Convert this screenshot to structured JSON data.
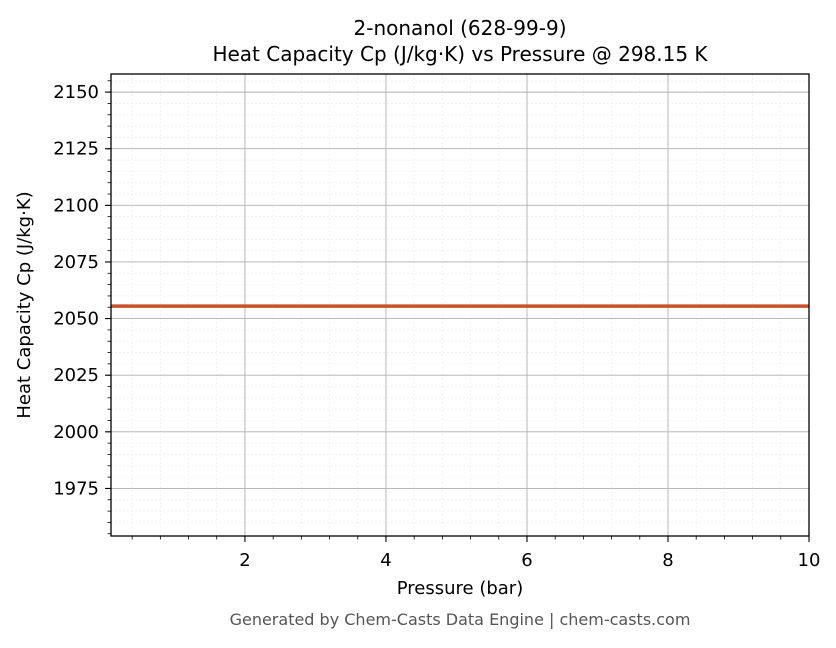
{
  "chart_data": {
    "type": "line",
    "title_line1": "2-nonanol (628-99-9)",
    "title_line2": "Heat Capacity Cp (J/kg·K) vs Pressure @ 298.15 K",
    "xlabel": "Pressure (bar)",
    "ylabel": "Heat Capacity Cp (J/kg·K)",
    "xlim": [
      0.1,
      10
    ],
    "ylim": [
      1954,
      2158
    ],
    "x_ticks": [
      2,
      4,
      6,
      8,
      10
    ],
    "y_ticks": [
      1975,
      2000,
      2025,
      2050,
      2075,
      2100,
      2125,
      2150
    ],
    "grid": true,
    "series": [
      {
        "color": "#c8522a",
        "x": [
          0.1,
          10
        ],
        "y": [
          2055.5,
          2055.5
        ]
      }
    ],
    "footer": "Generated by Chem-Casts Data Engine | chem-casts.com"
  }
}
